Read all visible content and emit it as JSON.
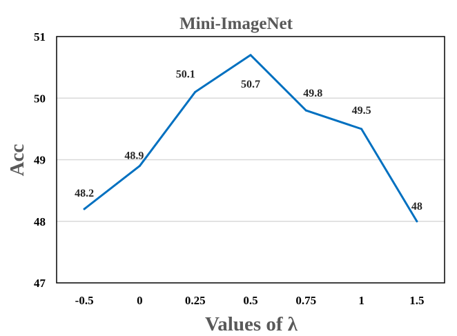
{
  "chart_data": {
    "type": "line",
    "title": "Mini-ImageNet",
    "xlabel": "Values of λ",
    "ylabel": "Acc",
    "categories": [
      "-0.5",
      "0",
      "0.25",
      "0.5",
      "0.75",
      "1",
      "1.5"
    ],
    "series": [
      {
        "values": [
          48.2,
          48.9,
          50.1,
          50.7,
          49.8,
          49.5,
          48
        ],
        "color": "#0070c0"
      }
    ],
    "data_labels": [
      "48.2",
      "48.9",
      "50.1",
      "50.7",
      "49.8",
      "49.5",
      "48"
    ],
    "yticks": [
      "47",
      "48",
      "49",
      "50",
      "51"
    ],
    "ylim": [
      47,
      51
    ],
    "grid": true,
    "gridColor": "#d9d9d9",
    "legend": "none"
  }
}
